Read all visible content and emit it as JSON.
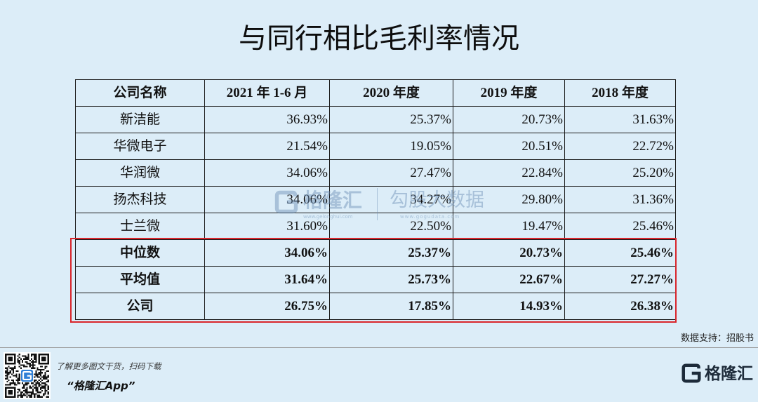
{
  "chart_data": {
    "type": "table",
    "title": "与同行相比毛利率情况",
    "columns": [
      "公司名称",
      "2021 年 1-6 月",
      "2020 年度",
      "2019 年度",
      "2018 年度"
    ],
    "rows": [
      {
        "label": "新洁能",
        "values": [
          "36.93%",
          "25.37%",
          "20.73%",
          "31.63%"
        ]
      },
      {
        "label": "华微电子",
        "values": [
          "21.54%",
          "19.05%",
          "20.51%",
          "22.72%"
        ]
      },
      {
        "label": "华润微",
        "values": [
          "34.06%",
          "27.47%",
          "22.84%",
          "25.20%"
        ]
      },
      {
        "label": "扬杰科技",
        "values": [
          "34.06%",
          "34.27%",
          "29.80%",
          "31.36%"
        ]
      },
      {
        "label": "士兰微",
        "values": [
          "31.60%",
          "22.50%",
          "19.47%",
          "25.46%"
        ]
      }
    ],
    "summary_rows": [
      {
        "label": "中位数",
        "values": [
          "34.06%",
          "25.37%",
          "20.73%",
          "25.46%"
        ]
      },
      {
        "label": "平均值",
        "values": [
          "31.64%",
          "25.73%",
          "22.67%",
          "27.27%"
        ]
      },
      {
        "label": "公司",
        "values": [
          "26.75%",
          "17.85%",
          "14.93%",
          "26.38%"
        ]
      }
    ],
    "grid": true
  },
  "source_note": "数据支持：招股书",
  "watermark": {
    "brand": "格隆汇",
    "brand_site": "www.gelonghui.com",
    "partner": "勾股大数据",
    "partner_site": "www.gogudata.com"
  },
  "footer": {
    "tagline": "了解更多图文干货，扫码下载",
    "app_name": "“格隆汇App”",
    "logo_text": "格隆汇"
  },
  "icons": {
    "qr": "qr-code-icon",
    "logo": "gelonghui-g-icon"
  },
  "colors": {
    "background": "#dcedf8",
    "highlight_box": "#d9262c",
    "grid": "#1c1c1c",
    "logo": "#1d2b3a",
    "qr_logo": "#2f7fd6"
  }
}
